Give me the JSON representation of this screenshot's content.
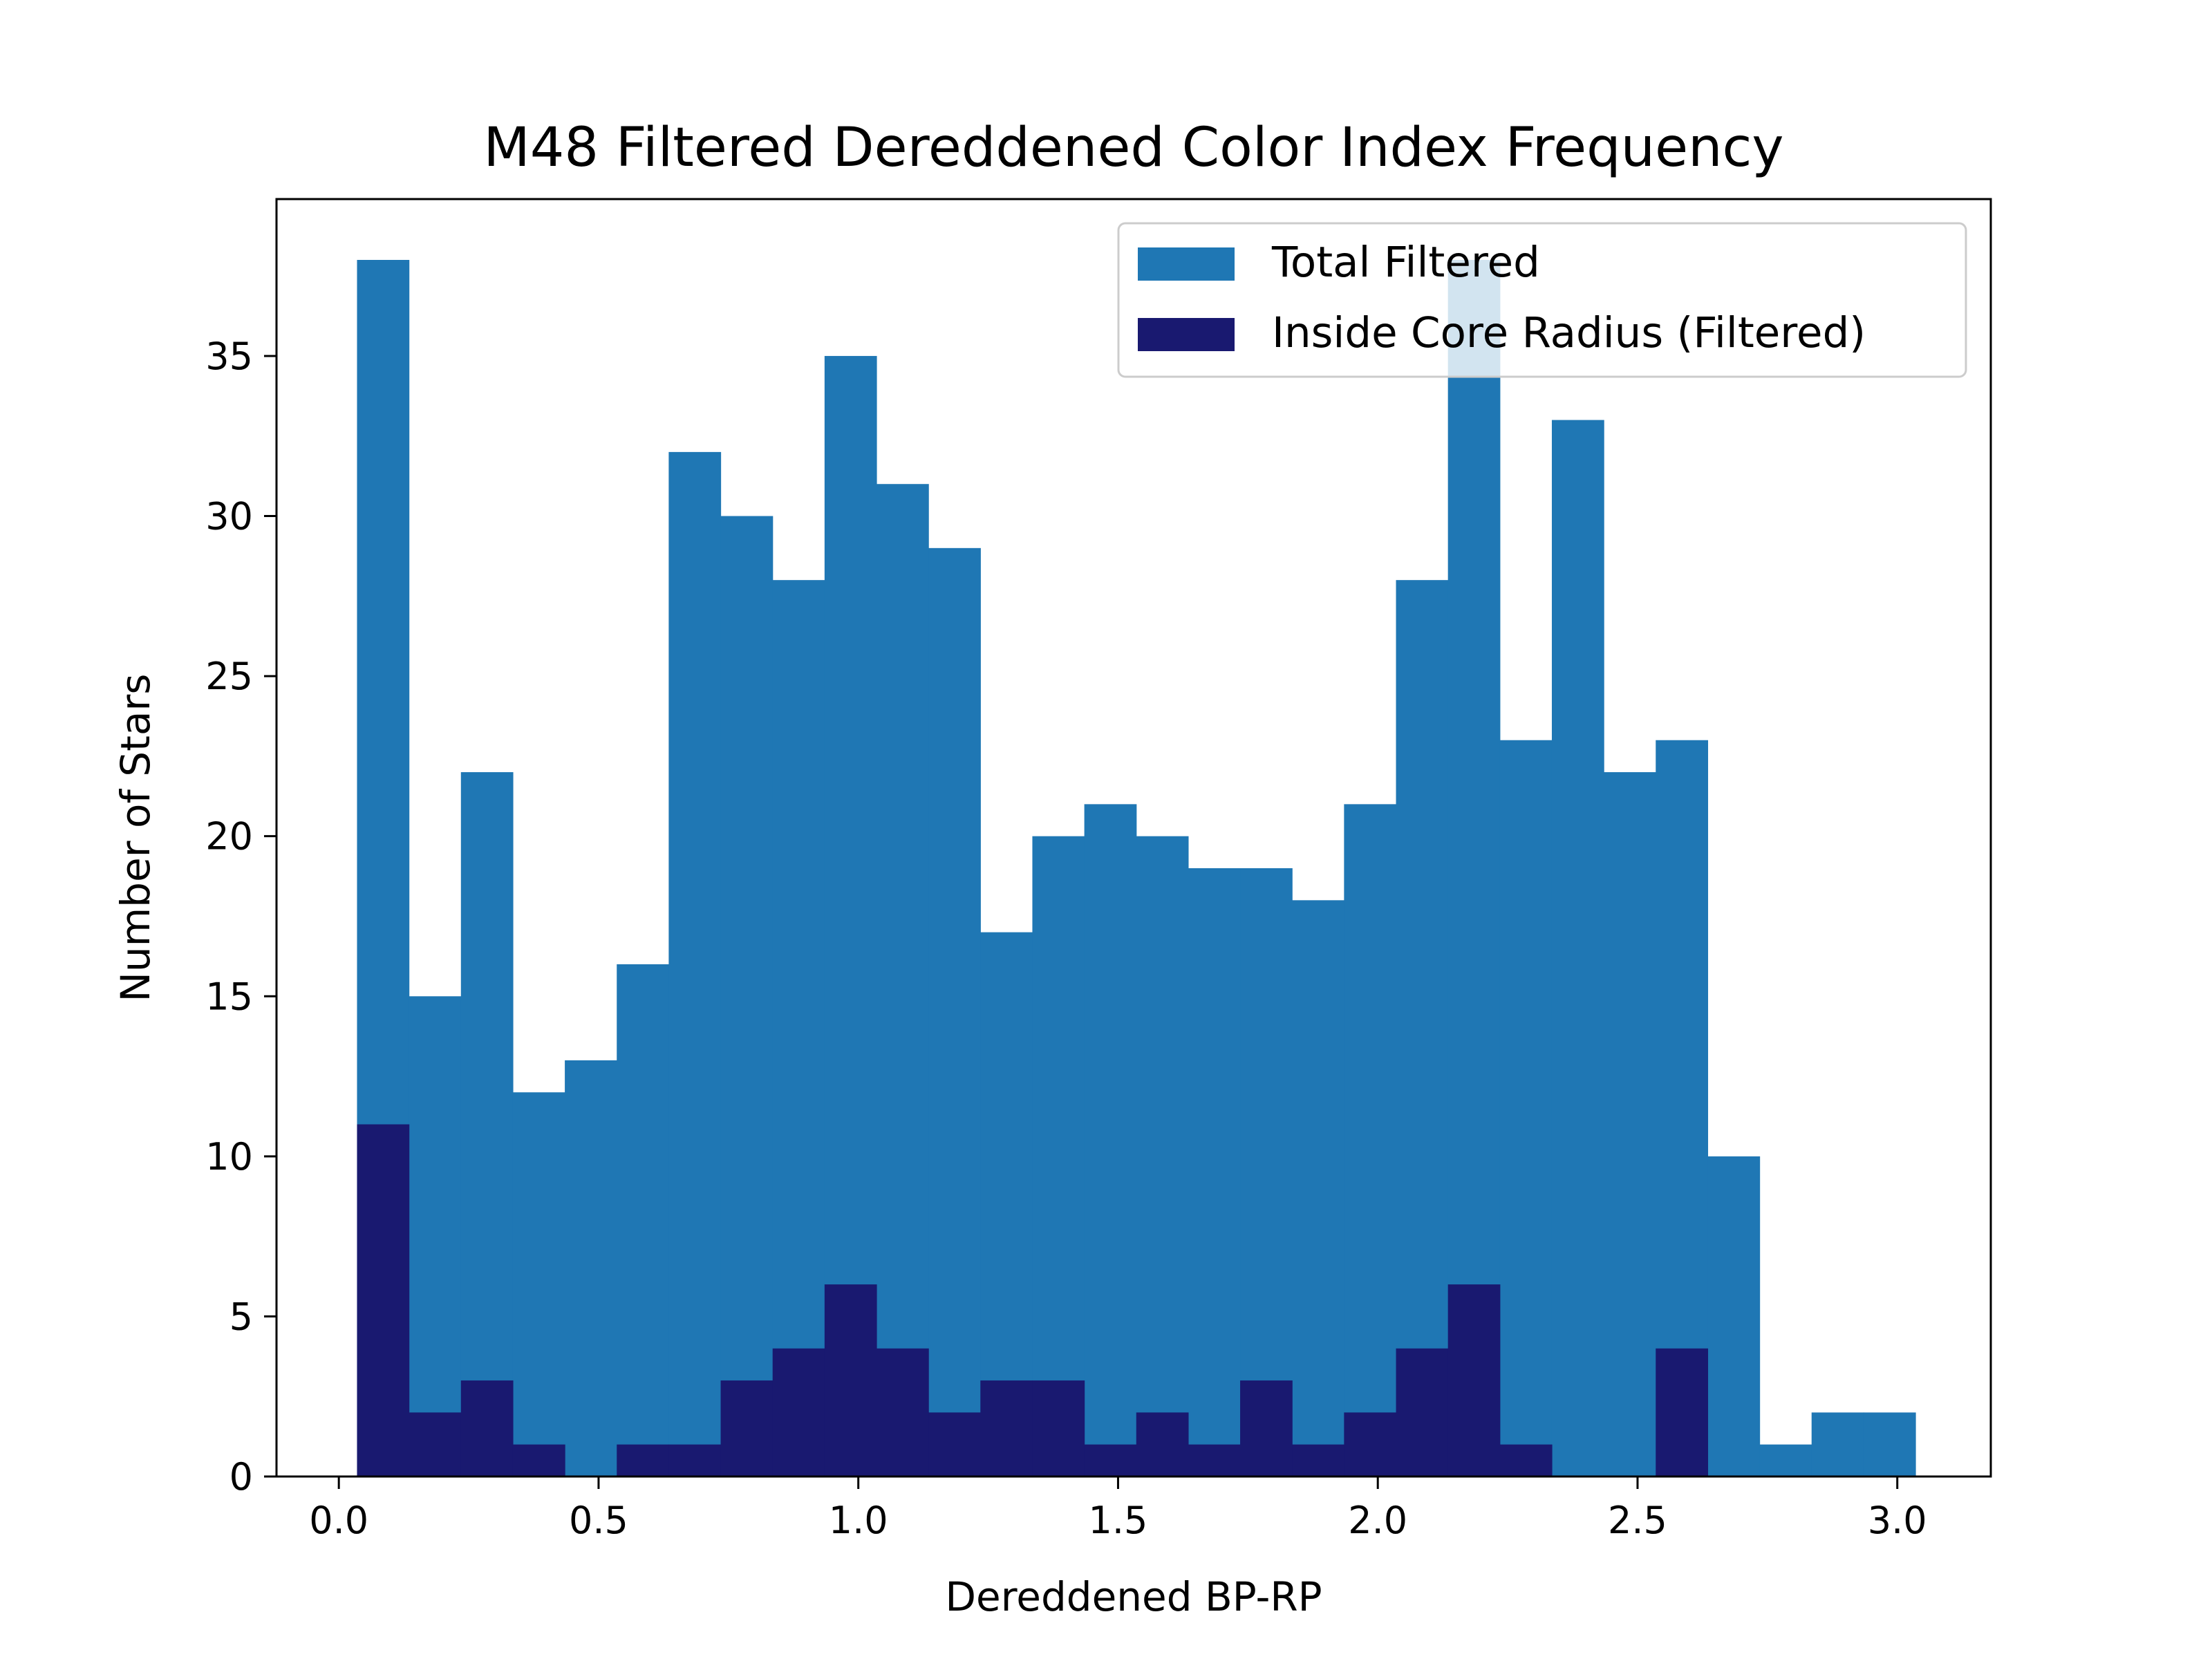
{
  "chart_data": {
    "type": "bar",
    "title": "M48 Filtered Dereddened Color Index Frequency",
    "xlabel": "Dereddened BP-RP",
    "ylabel": "Number of Stars",
    "xlim": [
      -0.12,
      3.18
    ],
    "ylim": [
      0,
      39.9
    ],
    "x_ticks": [
      0.0,
      0.5,
      1.0,
      1.5,
      2.0,
      2.5,
      3.0
    ],
    "x_tick_labels": [
      "0.0",
      "0.5",
      "1.0",
      "1.5",
      "2.0",
      "2.5",
      "3.0"
    ],
    "y_ticks": [
      0,
      5,
      10,
      15,
      20,
      25,
      30,
      35
    ],
    "y_tick_labels": [
      "0",
      "5",
      "10",
      "15",
      "20",
      "25",
      "30",
      "35"
    ],
    "grid": false,
    "legend_position": "top-right",
    "bin_edges": [
      0.035,
      0.135,
      0.235,
      0.335,
      0.435,
      0.535,
      0.635,
      0.735,
      0.835,
      0.935,
      1.035,
      1.135,
      1.235,
      1.335,
      1.435,
      1.535,
      1.635,
      1.735,
      1.835,
      1.935,
      2.035,
      2.135,
      2.235,
      2.335,
      2.435,
      2.535,
      2.635,
      2.735,
      2.835,
      2.935,
      3.035
    ],
    "series": [
      {
        "name": "Total Filtered",
        "color": "#1f77b4",
        "values": [
          38,
          15,
          22,
          12,
          13,
          16,
          32,
          30,
          28,
          35,
          31,
          29,
          17,
          20,
          21,
          20,
          19,
          19,
          18,
          21,
          28,
          38,
          23,
          33,
          22,
          23,
          10,
          1,
          2,
          2
        ]
      },
      {
        "name": "Inside Core Radius (Filtered)",
        "color": "#191970",
        "values": [
          11,
          2,
          3,
          1,
          0,
          1,
          1,
          3,
          4,
          6,
          4,
          2,
          3,
          3,
          1,
          2,
          1,
          3,
          1,
          2,
          4,
          6,
          1,
          0,
          0,
          4,
          0,
          0,
          0,
          0
        ]
      }
    ]
  }
}
